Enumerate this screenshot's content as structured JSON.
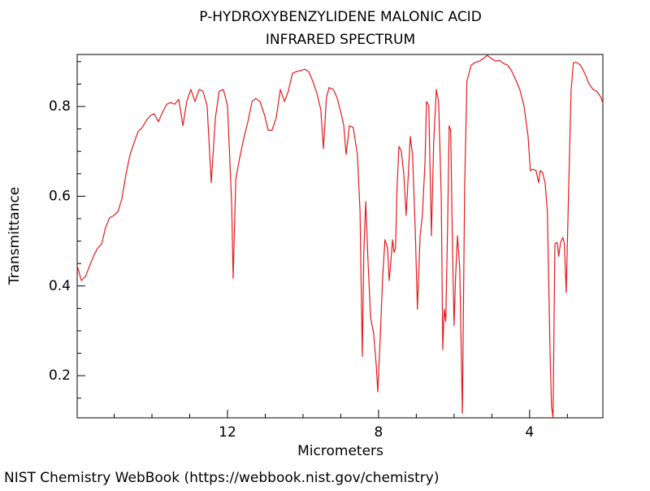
{
  "chart_data": {
    "type": "line",
    "title": "P-HYDROXYBENZYLIDENE MALONIC ACID",
    "subtitle": "INFRARED SPECTRUM",
    "x_label": "Micrometers",
    "y_label": "Transmittance",
    "source": "NIST Chemistry WebBook (https://webbook.nist.gov/chemistry)",
    "color": "#e41a1c",
    "xlim": [
      15.98,
      2.06
    ],
    "ylim": [
      0.106,
      0.916
    ],
    "xticks": [
      12,
      8,
      4
    ],
    "xminor_ticks": [
      15,
      14,
      13,
      11,
      10,
      9,
      7,
      6,
      5,
      3
    ],
    "yticks": [
      0.2,
      0.4,
      0.6,
      0.8
    ],
    "yminor_ticks": [
      0.15,
      0.25,
      0.3,
      0.35,
      0.45,
      0.5,
      0.55,
      0.65,
      0.7,
      0.75,
      0.85,
      0.9
    ],
    "x": [
      15.98,
      15.87,
      15.76,
      15.66,
      15.55,
      15.44,
      15.33,
      15.23,
      15.12,
      15.01,
      14.9,
      14.8,
      14.69,
      14.58,
      14.47,
      14.37,
      14.26,
      14.15,
      14.04,
      13.94,
      13.83,
      13.72,
      13.61,
      13.51,
      13.4,
      13.29,
      13.18,
      13.08,
      12.97,
      12.86,
      12.75,
      12.65,
      12.54,
      12.43,
      12.32,
      12.22,
      12.11,
      12.0,
      11.89,
      11.85,
      11.78,
      11.68,
      11.57,
      11.46,
      11.35,
      11.25,
      11.14,
      11.03,
      10.92,
      10.82,
      10.71,
      10.6,
      10.49,
      10.39,
      10.28,
      10.17,
      10.06,
      9.96,
      9.85,
      9.74,
      9.63,
      9.53,
      9.46,
      9.38,
      9.31,
      9.2,
      9.1,
      8.99,
      8.92,
      8.86,
      8.77,
      8.67,
      8.56,
      8.49,
      8.43,
      8.39,
      8.34,
      8.28,
      8.21,
      8.13,
      8.06,
      8.02,
      7.96,
      7.89,
      7.83,
      7.76,
      7.72,
      7.68,
      7.63,
      7.59,
      7.55,
      7.51,
      7.46,
      7.4,
      7.33,
      7.27,
      7.2,
      7.16,
      7.1,
      7.03,
      6.97,
      6.9,
      6.84,
      6.77,
      6.73,
      6.67,
      6.6,
      6.54,
      6.47,
      6.41,
      6.34,
      6.3,
      6.26,
      6.22,
      6.17,
      6.13,
      6.09,
      6.04,
      6.0,
      5.96,
      5.91,
      5.85,
      5.78,
      5.72,
      5.66,
      5.55,
      5.44,
      5.33,
      5.23,
      5.12,
      5.01,
      4.9,
      4.8,
      4.69,
      4.58,
      4.47,
      4.37,
      4.26,
      4.15,
      4.04,
      3.98,
      3.91,
      3.83,
      3.76,
      3.72,
      3.66,
      3.59,
      3.53,
      3.46,
      3.42,
      3.38,
      3.33,
      3.27,
      3.23,
      3.18,
      3.12,
      3.08,
      3.03,
      2.97,
      2.9,
      2.84,
      2.75,
      2.65,
      2.54,
      2.43,
      2.32,
      2.22,
      2.11,
      2.06
    ],
    "values": [
      0.445,
      0.412,
      0.421,
      0.443,
      0.466,
      0.484,
      0.494,
      0.53,
      0.552,
      0.557,
      0.566,
      0.593,
      0.648,
      0.693,
      0.72,
      0.744,
      0.753,
      0.769,
      0.78,
      0.784,
      0.766,
      0.787,
      0.805,
      0.809,
      0.805,
      0.816,
      0.757,
      0.811,
      0.838,
      0.811,
      0.838,
      0.834,
      0.802,
      0.63,
      0.775,
      0.834,
      0.838,
      0.802,
      0.584,
      0.417,
      0.639,
      0.684,
      0.729,
      0.766,
      0.811,
      0.818,
      0.811,
      0.784,
      0.747,
      0.747,
      0.775,
      0.838,
      0.811,
      0.834,
      0.874,
      0.878,
      0.88,
      0.883,
      0.878,
      0.856,
      0.829,
      0.793,
      0.706,
      0.82,
      0.842,
      0.838,
      0.82,
      0.784,
      0.757,
      0.693,
      0.757,
      0.753,
      0.693,
      0.566,
      0.243,
      0.475,
      0.588,
      0.457,
      0.33,
      0.294,
      0.222,
      0.164,
      0.276,
      0.421,
      0.503,
      0.484,
      0.412,
      0.448,
      0.503,
      0.475,
      0.484,
      0.62,
      0.711,
      0.702,
      0.648,
      0.557,
      0.666,
      0.733,
      0.693,
      0.53,
      0.348,
      0.512,
      0.557,
      0.675,
      0.811,
      0.802,
      0.512,
      0.72,
      0.838,
      0.811,
      0.602,
      0.258,
      0.348,
      0.321,
      0.539,
      0.757,
      0.747,
      0.475,
      0.312,
      0.421,
      0.512,
      0.439,
      0.116,
      0.62,
      0.856,
      0.892,
      0.898,
      0.901,
      0.907,
      0.914,
      0.907,
      0.901,
      0.903,
      0.896,
      0.892,
      0.878,
      0.86,
      0.838,
      0.802,
      0.733,
      0.657,
      0.66,
      0.657,
      0.63,
      0.657,
      0.653,
      0.63,
      0.566,
      0.258,
      0.131,
      0.107,
      0.494,
      0.497,
      0.466,
      0.497,
      0.508,
      0.494,
      0.385,
      0.602,
      0.838,
      0.898,
      0.898,
      0.892,
      0.874,
      0.851,
      0.838,
      0.834,
      0.82,
      0.807
    ]
  }
}
